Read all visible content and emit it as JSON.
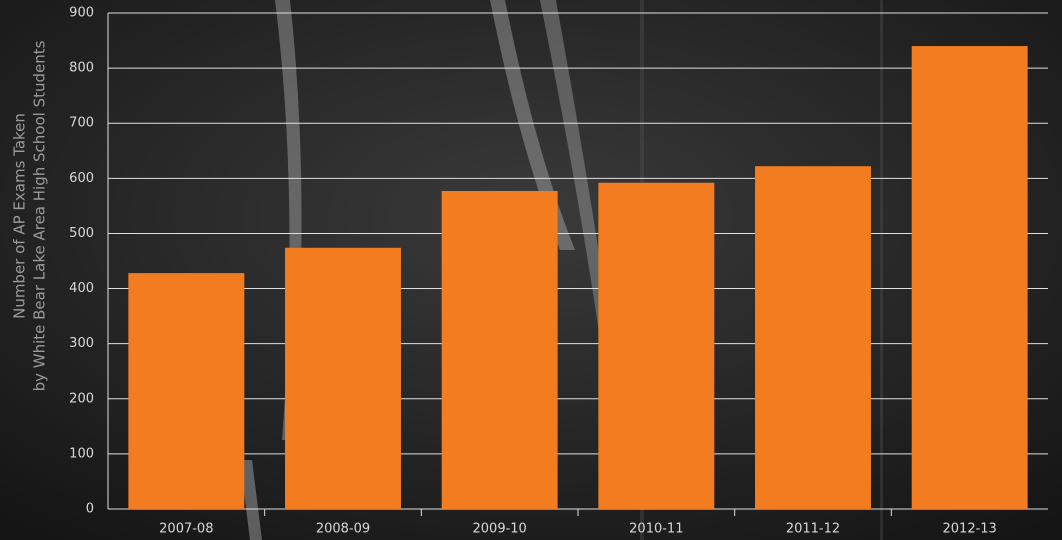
{
  "chart_data": {
    "type": "bar",
    "ylabel": [
      "Number of AP Exams Taken",
      "by White Bear Lake Area High School Students"
    ],
    "categories": [
      "2007-08",
      "2008-09",
      "2009-10",
      "2010-11",
      "2011-12",
      "2012-13"
    ],
    "values": [
      428,
      474,
      577,
      592,
      622,
      840
    ],
    "color": "#f47c20",
    "ylim": [
      0,
      900
    ],
    "yticks": [
      0,
      100,
      200,
      300,
      400,
      500,
      600,
      700,
      800,
      900
    ],
    "grid": true
  }
}
